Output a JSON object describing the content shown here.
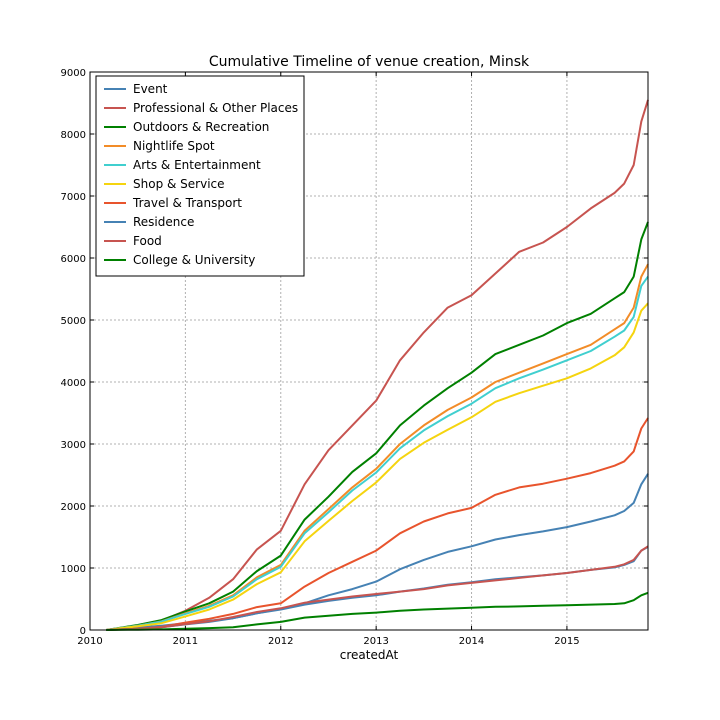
{
  "chart_data": {
    "type": "line",
    "title": "Cumulative Timeline of venue creation, Minsk",
    "xlabel": "createdAt",
    "ylabel": "",
    "xlim": [
      2010.0,
      2015.85
    ],
    "ylim": [
      0,
      9000
    ],
    "x_ticks": [
      {
        "value": 2010,
        "label": "2010"
      },
      {
        "value": 2011,
        "label": "2011"
      },
      {
        "value": 2012,
        "label": "2012"
      },
      {
        "value": 2013,
        "label": "2013"
      },
      {
        "value": 2014,
        "label": "2014"
      },
      {
        "value": 2015,
        "label": "2015"
      }
    ],
    "y_ticks": [
      {
        "value": 0,
        "label": "0"
      },
      {
        "value": 1000,
        "label": "1000"
      },
      {
        "value": 2000,
        "label": "2000"
      },
      {
        "value": 3000,
        "label": "3000"
      },
      {
        "value": 4000,
        "label": "4000"
      },
      {
        "value": 5000,
        "label": "5000"
      },
      {
        "value": 6000,
        "label": "6000"
      },
      {
        "value": 7000,
        "label": "7000"
      },
      {
        "value": 8000,
        "label": "8000"
      },
      {
        "value": 9000,
        "label": "9000"
      }
    ],
    "grid": true,
    "legend_position": "top-left",
    "x": [
      2010.17,
      2010.5,
      2010.75,
      2011.0,
      2011.25,
      2011.5,
      2011.75,
      2012.0,
      2012.25,
      2012.5,
      2012.75,
      2013.0,
      2013.25,
      2013.5,
      2013.75,
      2014.0,
      2014.25,
      2014.5,
      2014.75,
      2015.0,
      2015.25,
      2015.5,
      2015.6,
      2015.7,
      2015.78,
      2015.85
    ],
    "series": [
      {
        "name": "Event",
        "color": "#4682b4",
        "values": [
          0,
          40,
          70,
          110,
          150,
          190,
          270,
          340,
          430,
          560,
          660,
          780,
          980,
          1130,
          1260,
          1350,
          1460,
          1530,
          1590,
          1660,
          1750,
          1850,
          1920,
          2050,
          2350,
          2520
        ]
      },
      {
        "name": "Professional & Other Places",
        "color": "#c75450",
        "values": [
          0,
          60,
          150,
          310,
          520,
          820,
          1300,
          1600,
          2350,
          2900,
          3300,
          3700,
          4350,
          4800,
          5200,
          5400,
          5750,
          6100,
          6250,
          6500,
          6800,
          7050,
          7200,
          7500,
          8200,
          8550
        ]
      },
      {
        "name": "Outdoors & Recreation",
        "color": "#008000",
        "values": [
          0,
          80,
          160,
          300,
          430,
          620,
          950,
          1200,
          1780,
          2150,
          2550,
          2850,
          3300,
          3620,
          3900,
          4150,
          4450,
          4600,
          4750,
          4950,
          5100,
          5350,
          5450,
          5700,
          6300,
          6580
        ]
      },
      {
        "name": "Nightlife Spot",
        "color": "#f28c28",
        "values": [
          0,
          70,
          140,
          270,
          390,
          560,
          850,
          1050,
          1600,
          1950,
          2300,
          2600,
          3000,
          3300,
          3550,
          3750,
          4000,
          4150,
          4300,
          4450,
          4600,
          4850,
          4950,
          5200,
          5700,
          5900
        ]
      },
      {
        "name": "Arts & Entertainment",
        "color": "#40cfcf",
        "values": [
          0,
          70,
          135,
          260,
          375,
          540,
          820,
          1020,
          1560,
          1900,
          2250,
          2540,
          2930,
          3220,
          3450,
          3650,
          3900,
          4060,
          4200,
          4350,
          4500,
          4730,
          4830,
          5050,
          5550,
          5700
        ]
      },
      {
        "name": "Shop & Service",
        "color": "#f5d40f",
        "values": [
          0,
          60,
          110,
          220,
          330,
          490,
          740,
          930,
          1430,
          1760,
          2080,
          2380,
          2760,
          3020,
          3230,
          3430,
          3680,
          3820,
          3940,
          4060,
          4220,
          4430,
          4560,
          4800,
          5150,
          5270
        ]
      },
      {
        "name": "Travel & Transport",
        "color": "#e8542d",
        "values": [
          0,
          20,
          50,
          120,
          180,
          260,
          370,
          430,
          700,
          920,
          1100,
          1280,
          1560,
          1750,
          1880,
          1970,
          2180,
          2300,
          2360,
          2440,
          2530,
          2650,
          2720,
          2880,
          3250,
          3420
        ]
      },
      {
        "name": "Residence",
        "color": "#4682b4",
        "values": [
          0,
          20,
          45,
          90,
          130,
          190,
          270,
          330,
          410,
          470,
          520,
          560,
          620,
          670,
          730,
          770,
          820,
          850,
          880,
          920,
          970,
          1010,
          1050,
          1110,
          1280,
          1340
        ]
      },
      {
        "name": "Food",
        "color": "#c75450",
        "values": [
          0,
          20,
          45,
          95,
          140,
          210,
          290,
          350,
          440,
          490,
          540,
          580,
          620,
          660,
          720,
          760,
          800,
          840,
          880,
          920,
          970,
          1020,
          1060,
          1130,
          1280,
          1350
        ]
      },
      {
        "name": "College & University",
        "color": "#008000",
        "values": [
          0,
          5,
          10,
          20,
          30,
          45,
          90,
          130,
          200,
          230,
          260,
          280,
          310,
          330,
          345,
          360,
          375,
          380,
          390,
          400,
          410,
          420,
          430,
          480,
          560,
          600
        ]
      }
    ]
  }
}
